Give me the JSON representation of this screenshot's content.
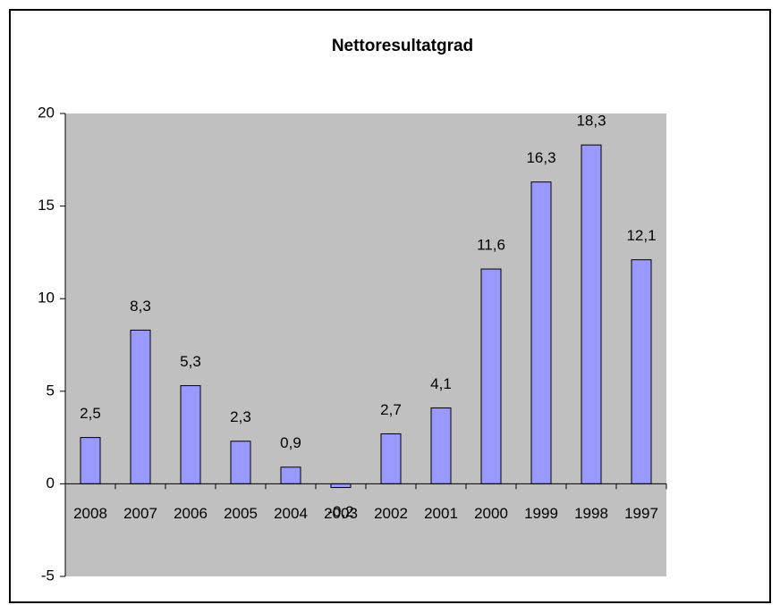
{
  "chart_data": {
    "type": "bar",
    "title": "Nettoresultatgrad",
    "categories": [
      "2008",
      "2007",
      "2006",
      "2005",
      "2004",
      "2003",
      "2002",
      "2001",
      "2000",
      "1999",
      "1998",
      "1997"
    ],
    "values": [
      2.5,
      8.3,
      5.3,
      2.3,
      0.9,
      -0.2,
      2.7,
      4.1,
      11.6,
      16.3,
      18.3,
      12.1
    ],
    "value_labels": [
      "2,5",
      "8,3",
      "5,3",
      "2,3",
      "0,9",
      "-0,2",
      "2,7",
      "4,1",
      "11,6",
      "16,3",
      "18,3",
      "12,1"
    ],
    "color": "#9999ff",
    "ylim": [
      -5,
      20
    ],
    "yticks": [
      -5,
      0,
      5,
      10,
      15,
      20
    ]
  }
}
